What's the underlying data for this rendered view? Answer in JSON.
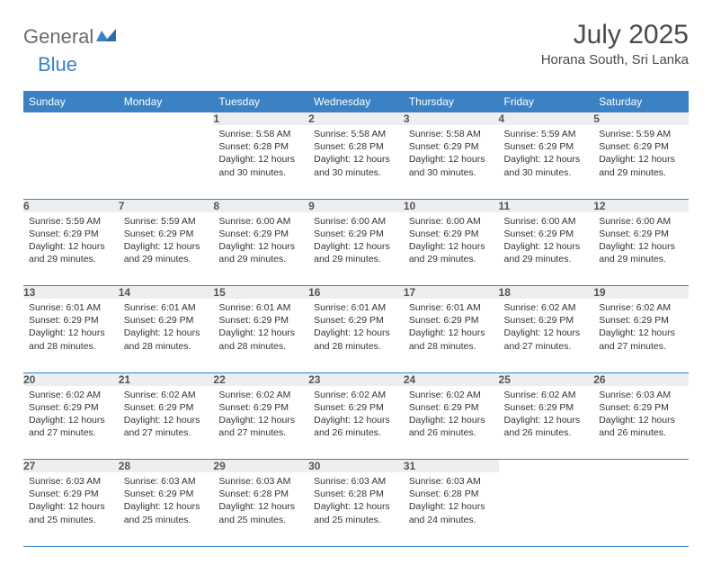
{
  "brand": {
    "word1": "General",
    "word2": "Blue",
    "word1_color": "#6b6b6b",
    "word2_color": "#3a82c4",
    "mark_color": "#3a82c4"
  },
  "title": "July 2025",
  "location": "Horana South, Sri Lanka",
  "styles": {
    "header_bg": "#3a82c4",
    "header_fg": "#ffffff",
    "daynum_bg": "#eceeef",
    "row_divider": "#3a82c4",
    "text_color": "#333333",
    "page_bg": "#ffffff",
    "title_color": "#4a4a4a"
  },
  "weekdays": [
    "Sunday",
    "Monday",
    "Tuesday",
    "Wednesday",
    "Thursday",
    "Friday",
    "Saturday"
  ],
  "weeks": [
    [
      null,
      null,
      {
        "n": "1",
        "sr": "5:58 AM",
        "ss": "6:28 PM",
        "dl": "12 hours and 30 minutes."
      },
      {
        "n": "2",
        "sr": "5:58 AM",
        "ss": "6:28 PM",
        "dl": "12 hours and 30 minutes."
      },
      {
        "n": "3",
        "sr": "5:58 AM",
        "ss": "6:29 PM",
        "dl": "12 hours and 30 minutes."
      },
      {
        "n": "4",
        "sr": "5:59 AM",
        "ss": "6:29 PM",
        "dl": "12 hours and 30 minutes."
      },
      {
        "n": "5",
        "sr": "5:59 AM",
        "ss": "6:29 PM",
        "dl": "12 hours and 29 minutes."
      }
    ],
    [
      {
        "n": "6",
        "sr": "5:59 AM",
        "ss": "6:29 PM",
        "dl": "12 hours and 29 minutes."
      },
      {
        "n": "7",
        "sr": "5:59 AM",
        "ss": "6:29 PM",
        "dl": "12 hours and 29 minutes."
      },
      {
        "n": "8",
        "sr": "6:00 AM",
        "ss": "6:29 PM",
        "dl": "12 hours and 29 minutes."
      },
      {
        "n": "9",
        "sr": "6:00 AM",
        "ss": "6:29 PM",
        "dl": "12 hours and 29 minutes."
      },
      {
        "n": "10",
        "sr": "6:00 AM",
        "ss": "6:29 PM",
        "dl": "12 hours and 29 minutes."
      },
      {
        "n": "11",
        "sr": "6:00 AM",
        "ss": "6:29 PM",
        "dl": "12 hours and 29 minutes."
      },
      {
        "n": "12",
        "sr": "6:00 AM",
        "ss": "6:29 PM",
        "dl": "12 hours and 29 minutes."
      }
    ],
    [
      {
        "n": "13",
        "sr": "6:01 AM",
        "ss": "6:29 PM",
        "dl": "12 hours and 28 minutes."
      },
      {
        "n": "14",
        "sr": "6:01 AM",
        "ss": "6:29 PM",
        "dl": "12 hours and 28 minutes."
      },
      {
        "n": "15",
        "sr": "6:01 AM",
        "ss": "6:29 PM",
        "dl": "12 hours and 28 minutes."
      },
      {
        "n": "16",
        "sr": "6:01 AM",
        "ss": "6:29 PM",
        "dl": "12 hours and 28 minutes."
      },
      {
        "n": "17",
        "sr": "6:01 AM",
        "ss": "6:29 PM",
        "dl": "12 hours and 28 minutes."
      },
      {
        "n": "18",
        "sr": "6:02 AM",
        "ss": "6:29 PM",
        "dl": "12 hours and 27 minutes."
      },
      {
        "n": "19",
        "sr": "6:02 AM",
        "ss": "6:29 PM",
        "dl": "12 hours and 27 minutes."
      }
    ],
    [
      {
        "n": "20",
        "sr": "6:02 AM",
        "ss": "6:29 PM",
        "dl": "12 hours and 27 minutes."
      },
      {
        "n": "21",
        "sr": "6:02 AM",
        "ss": "6:29 PM",
        "dl": "12 hours and 27 minutes."
      },
      {
        "n": "22",
        "sr": "6:02 AM",
        "ss": "6:29 PM",
        "dl": "12 hours and 27 minutes."
      },
      {
        "n": "23",
        "sr": "6:02 AM",
        "ss": "6:29 PM",
        "dl": "12 hours and 26 minutes."
      },
      {
        "n": "24",
        "sr": "6:02 AM",
        "ss": "6:29 PM",
        "dl": "12 hours and 26 minutes."
      },
      {
        "n": "25",
        "sr": "6:02 AM",
        "ss": "6:29 PM",
        "dl": "12 hours and 26 minutes."
      },
      {
        "n": "26",
        "sr": "6:03 AM",
        "ss": "6:29 PM",
        "dl": "12 hours and 26 minutes."
      }
    ],
    [
      {
        "n": "27",
        "sr": "6:03 AM",
        "ss": "6:29 PM",
        "dl": "12 hours and 25 minutes."
      },
      {
        "n": "28",
        "sr": "6:03 AM",
        "ss": "6:29 PM",
        "dl": "12 hours and 25 minutes."
      },
      {
        "n": "29",
        "sr": "6:03 AM",
        "ss": "6:28 PM",
        "dl": "12 hours and 25 minutes."
      },
      {
        "n": "30",
        "sr": "6:03 AM",
        "ss": "6:28 PM",
        "dl": "12 hours and 25 minutes."
      },
      {
        "n": "31",
        "sr": "6:03 AM",
        "ss": "6:28 PM",
        "dl": "12 hours and 24 minutes."
      },
      null,
      null
    ]
  ],
  "labels": {
    "sunrise": "Sunrise:",
    "sunset": "Sunset:",
    "daylight": "Daylight:"
  }
}
